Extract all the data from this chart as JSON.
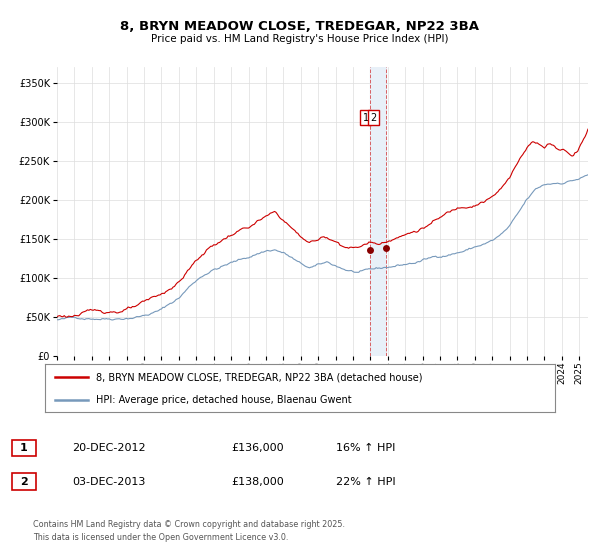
{
  "title": "8, BRYN MEADOW CLOSE, TREDEGAR, NP22 3BA",
  "subtitle": "Price paid vs. HM Land Registry's House Price Index (HPI)",
  "legend_entry1": "8, BRYN MEADOW CLOSE, TREDEGAR, NP22 3BA (detached house)",
  "legend_entry2": "HPI: Average price, detached house, Blaenau Gwent",
  "annotation1_date": "20-DEC-2012",
  "annotation1_price": "£136,000",
  "annotation1_hpi": "16% ↑ HPI",
  "annotation2_date": "03-DEC-2013",
  "annotation2_price": "£138,000",
  "annotation2_hpi": "22% ↑ HPI",
  "footer": "Contains HM Land Registry data © Crown copyright and database right 2025.\nThis data is licensed under the Open Government Licence v3.0.",
  "sale1_date_num": 2012.97,
  "sale1_price": 136000,
  "sale2_date_num": 2013.92,
  "sale2_price": 138000,
  "highlight_x1": 2012.97,
  "highlight_x2": 2013.92,
  "color_red": "#cc0000",
  "color_blue": "#7799bb",
  "color_highlight": "#e8f0f8",
  "ylim_min": 0,
  "ylim_max": 370000,
  "xlim_min": 1995.0,
  "xlim_max": 2025.5,
  "background_color": "#ffffff",
  "grid_color": "#dddddd",
  "yticks": [
    0,
    50000,
    100000,
    150000,
    200000,
    250000,
    300000,
    350000
  ]
}
